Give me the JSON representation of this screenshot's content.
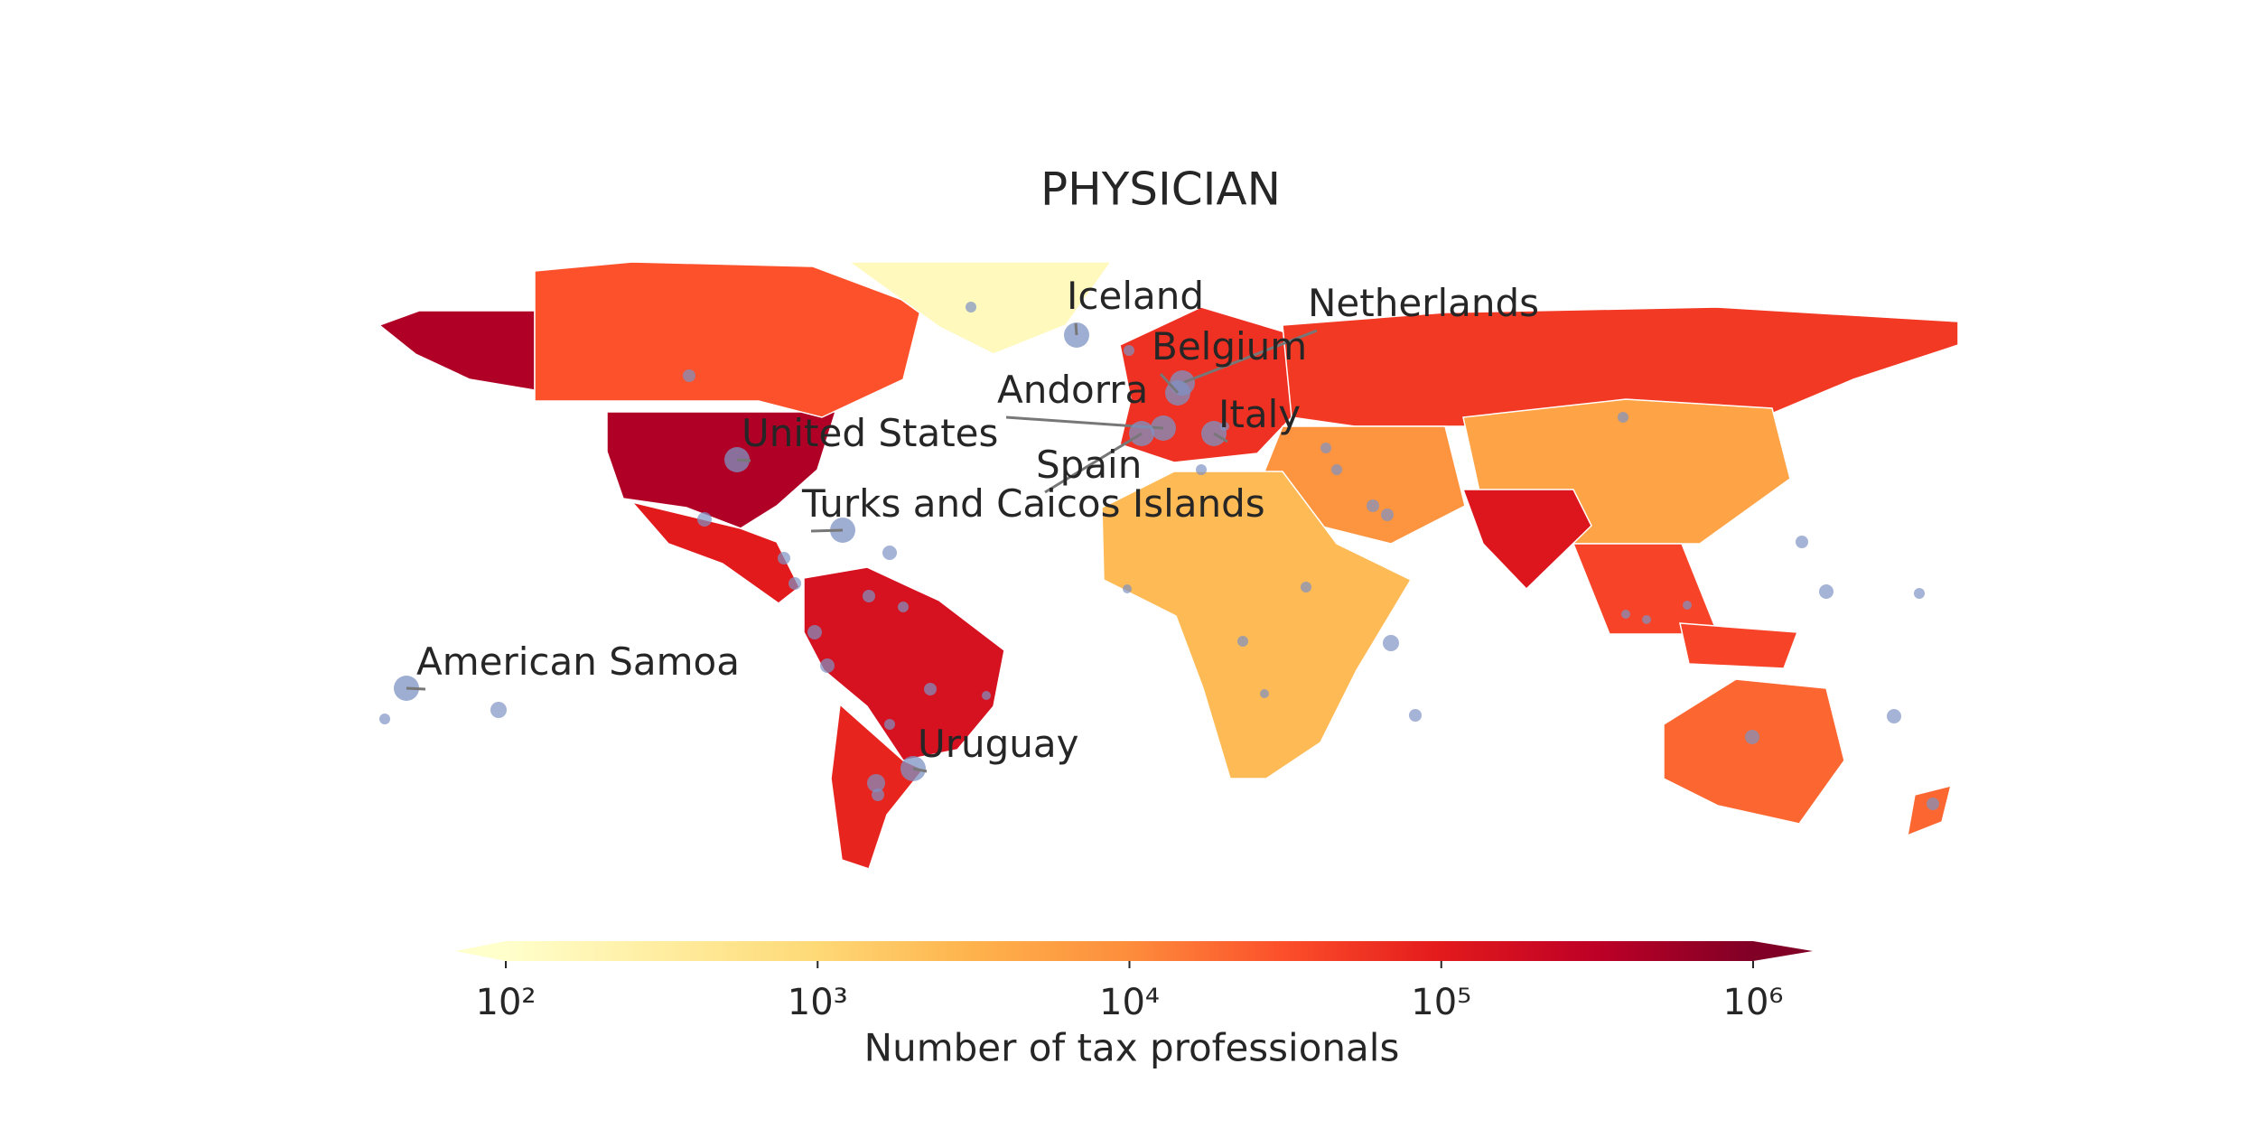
{
  "chart_data": {
    "type": "choropleth",
    "title": "PHYSICIAN",
    "colormap": [
      "#ffffcc",
      "#ffeda0",
      "#fed976",
      "#feb24c",
      "#fd8d3c",
      "#fc4e2a",
      "#e31a1c",
      "#bd0026",
      "#800026"
    ],
    "log_scale": true,
    "values": [
      400000,
      30000,
      150,
      100000,
      150000,
      80000,
      60000,
      50000,
      8000,
      5000,
      120000,
      40000,
      2500,
      20000
    ],
    "clim": [
      100,
      1000000
    ],
    "cticks": [
      {
        "value": 100,
        "label": "10²"
      },
      {
        "value": 1000,
        "label": "10³"
      },
      {
        "value": 10000,
        "label": "10⁴"
      },
      {
        "value": 100000,
        "label": "10⁵"
      },
      {
        "value": 1000000,
        "label": "10⁶"
      }
    ],
    "colorbar_label": "Number of tax professionals",
    "annotations": [
      {
        "text": "Iceland"
      },
      {
        "text": "Netherlands"
      },
      {
        "text": "Belgium"
      },
      {
        "text": "Andorra"
      },
      {
        "text": "Italy"
      },
      {
        "text": "United States"
      },
      {
        "text": "Spain"
      },
      {
        "text": "Turks and Caicos Islands"
      },
      {
        "text": "American Samoa"
      },
      {
        "text": "Uruguay"
      }
    ]
  }
}
